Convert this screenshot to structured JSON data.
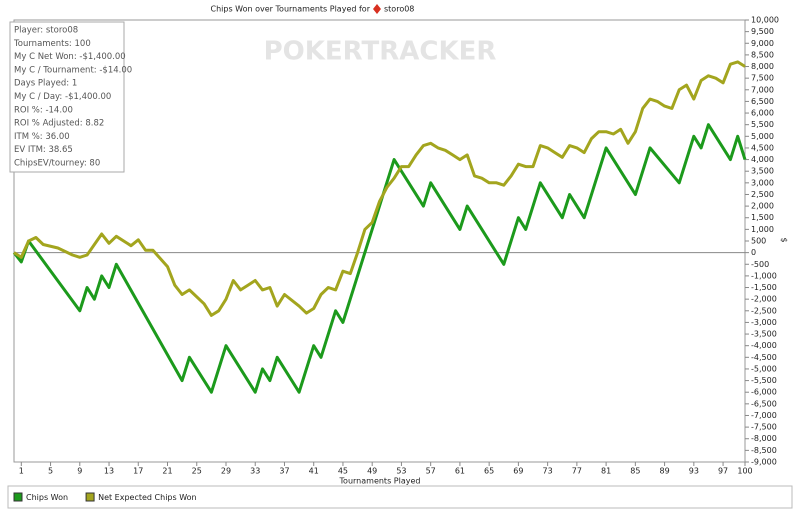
{
  "chart_data": {
    "type": "line",
    "title": "Chips Won over Tournaments Played for",
    "player": "storo08",
    "watermark": "POKERTRACKER",
    "x_label": "Tournaments Played",
    "y_label": "$",
    "stats": [
      "Player: storo08",
      "Tournaments: 100",
      "My C Net Won: -$1,400.00",
      "My C / Tournament: -$14.00",
      "Days Played: 1",
      "My C / Day: -$1,400.00",
      "ROI %: -14.00",
      "ROI % Adjusted: 8.82",
      "ITM %: 36.00",
      "EV ITM: 38.65",
      "ChipsEV/tourney: 80"
    ],
    "xlim": [
      0,
      100
    ],
    "xticks": [
      1,
      5,
      9,
      13,
      17,
      21,
      25,
      29,
      33,
      37,
      41,
      45,
      49,
      53,
      57,
      61,
      65,
      69,
      73,
      77,
      81,
      85,
      89,
      93,
      97,
      100
    ],
    "ylim": [
      -9000,
      10000
    ],
    "yticks": [
      {
        "value": 10000,
        "label": "10,000"
      },
      {
        "value": 9500,
        "label": "9,500"
      },
      {
        "value": 9000,
        "label": "9,000"
      },
      {
        "value": 8500,
        "label": "8,500"
      },
      {
        "value": 8000,
        "label": "8,000"
      },
      {
        "value": 7500,
        "label": "7,500"
      },
      {
        "value": 7000,
        "label": "7,000"
      },
      {
        "value": 6500,
        "label": "6,500"
      },
      {
        "value": 6000,
        "label": "6,000"
      },
      {
        "value": 5500,
        "label": "5,500"
      },
      {
        "value": 5000,
        "label": "5,000"
      },
      {
        "value": 4500,
        "label": "4,500"
      },
      {
        "value": 4000,
        "label": "4,000"
      },
      {
        "value": 3500,
        "label": "3,500"
      },
      {
        "value": 3000,
        "label": "3,000"
      },
      {
        "value": 2500,
        "label": "2,500"
      },
      {
        "value": 2000,
        "label": "2,000"
      },
      {
        "value": 1500,
        "label": "1,500"
      },
      {
        "value": 1000,
        "label": "1,000"
      },
      500,
      0,
      -500,
      {
        "value": -1000,
        "label": "-1,000"
      },
      {
        "value": -1500,
        "label": "-1,500"
      },
      {
        "value": -2000,
        "label": "-2,000"
      },
      {
        "value": -2500,
        "label": "-2,500"
      },
      {
        "value": -3000,
        "label": "-3,000"
      },
      {
        "value": -3500,
        "label": "-3,500"
      },
      {
        "value": -4000,
        "label": "-4,000"
      },
      {
        "value": -4500,
        "label": "-4,500"
      },
      {
        "value": -5000,
        "label": "-5,000"
      },
      {
        "value": -5500,
        "label": "-5,500"
      },
      {
        "value": -6000,
        "label": "-6,000"
      },
      {
        "value": -6500,
        "label": "-6,500"
      },
      {
        "value": -7000,
        "label": "-7,000"
      },
      {
        "value": -7500,
        "label": "-7,500"
      },
      {
        "value": -8000,
        "label": "-8,000"
      },
      {
        "value": -8500,
        "label": "-8,500"
      },
      {
        "value": -9000,
        "label": "-9,000"
      }
    ],
    "series": [
      {
        "name": "Chips Won",
        "color": "#1c9a1c",
        "x": [
          0,
          1,
          2,
          9,
          10,
          11,
          12,
          13,
          14,
          23,
          24,
          27,
          29,
          33,
          34,
          35,
          36,
          39,
          41,
          42,
          44,
          45,
          52,
          56,
          57,
          61,
          62,
          67,
          69,
          70,
          72,
          75,
          76,
          78,
          81,
          85,
          87,
          91,
          93,
          94,
          95,
          98,
          99,
          100
        ],
        "values": [
          0,
          -400,
          500,
          -2500,
          -1500,
          -2000,
          -1000,
          -1500,
          -500,
          -5500,
          -4500,
          -6000,
          -4000,
          -6000,
          -5000,
          -5500,
          -4500,
          -6000,
          -4000,
          -4500,
          -2500,
          -3000,
          4000,
          2000,
          3000,
          1000,
          2000,
          -500,
          1500,
          1000,
          3000,
          1500,
          2500,
          1500,
          4500,
          2500,
          4500,
          3000,
          5000,
          4500,
          5500,
          4000,
          5000,
          4000
        ]
      },
      {
        "name": "Net Expected Chips Won",
        "color": "#a3a51e",
        "x": [
          0,
          1,
          2,
          3,
          4,
          6,
          8,
          9,
          10,
          12,
          13,
          14,
          16,
          17,
          18,
          19,
          21,
          22,
          23,
          24,
          26,
          27,
          28,
          29,
          30,
          31,
          32,
          33,
          34,
          35,
          36,
          37,
          39,
          40,
          41,
          42,
          43,
          44,
          45,
          46,
          47,
          48,
          49,
          50,
          51,
          52,
          53,
          54,
          55,
          56,
          57,
          58,
          59,
          60,
          61,
          62,
          63,
          64,
          65,
          66,
          67,
          68,
          69,
          70,
          71,
          72,
          73,
          74,
          75,
          76,
          77,
          78,
          79,
          80,
          81,
          82,
          83,
          84,
          85,
          86,
          87,
          88,
          89,
          90,
          91,
          92,
          93,
          94,
          95,
          96,
          97,
          98,
          99,
          100
        ],
        "values": [
          0,
          -200,
          500,
          650,
          350,
          200,
          -100,
          -200,
          -100,
          800,
          400,
          700,
          300,
          550,
          100,
          100,
          -600,
          -1400,
          -1800,
          -1600,
          -2200,
          -2700,
          -2500,
          -2000,
          -1200,
          -1600,
          -1400,
          -1200,
          -1600,
          -1500,
          -2300,
          -1800,
          -2300,
          -2600,
          -2400,
          -1800,
          -1500,
          -1600,
          -800,
          -900,
          0,
          1000,
          1300,
          2200,
          2800,
          3200,
          3700,
          3700,
          4200,
          4600,
          4700,
          4500,
          4400,
          4200,
          4000,
          4200,
          3300,
          3200,
          3000,
          3000,
          2900,
          3300,
          3800,
          3700,
          3700,
          4600,
          4500,
          4300,
          4100,
          4600,
          4500,
          4300,
          4900,
          5200,
          5200,
          5100,
          5300,
          4700,
          5200,
          6200,
          6600,
          6500,
          6300,
          6200,
          7000,
          7200,
          6600,
          7400,
          7600,
          7500,
          7300,
          8100,
          8200,
          8000
        ]
      }
    ]
  }
}
